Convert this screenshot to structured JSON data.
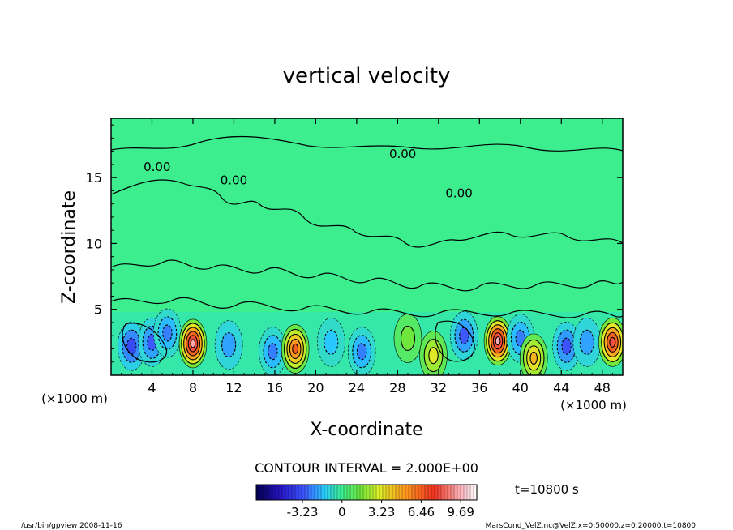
{
  "chart_data": {
    "type": "heatmap",
    "title": "vertical velocity",
    "xlabel": "X-coordinate",
    "ylabel": "Z-coordinate",
    "x_unit": "(×1000 m)",
    "xlim": [
      0,
      50
    ],
    "ylim": [
      0,
      19.5
    ],
    "x_ticks": [
      4,
      8,
      12,
      16,
      20,
      24,
      28,
      32,
      36,
      40,
      44,
      48
    ],
    "y_ticks": [
      5,
      10,
      15
    ],
    "contour_labels": [
      {
        "text": "0.00",
        "x": 4.5,
        "y": 15.5
      },
      {
        "text": "0.00",
        "x": 12.0,
        "y": 14.5
      },
      {
        "text": "0.00",
        "x": 28.5,
        "y": 16.5
      },
      {
        "text": "0.00",
        "x": 34.0,
        "y": 13.5
      }
    ],
    "cells": [
      {
        "x": 2.0,
        "z": 2.2,
        "w": -3.5
      },
      {
        "x": 4.0,
        "z": 2.5,
        "w": -3.0
      },
      {
        "x": 5.5,
        "z": 3.2,
        "w": -2.5
      },
      {
        "x": 8.0,
        "z": 2.4,
        "w": 9.5
      },
      {
        "x": 11.5,
        "z": 2.3,
        "w": -2.0
      },
      {
        "x": 15.8,
        "z": 1.8,
        "w": -2.5
      },
      {
        "x": 18.0,
        "z": 2.0,
        "w": 6.5
      },
      {
        "x": 21.5,
        "z": 2.5,
        "w": -1.5
      },
      {
        "x": 24.5,
        "z": 1.8,
        "w": -2.5
      },
      {
        "x": 29.0,
        "z": 2.8,
        "w": 1.5
      },
      {
        "x": 31.5,
        "z": 1.5,
        "w": 3.2
      },
      {
        "x": 34.5,
        "z": 3.0,
        "w": -3.0
      },
      {
        "x": 37.8,
        "z": 2.6,
        "w": 9.6
      },
      {
        "x": 40.0,
        "z": 2.8,
        "w": -2.5
      },
      {
        "x": 41.3,
        "z": 1.3,
        "w": 4.5
      },
      {
        "x": 44.5,
        "z": 2.2,
        "w": -3.2
      },
      {
        "x": 46.5,
        "z": 2.5,
        "w": -2.0
      },
      {
        "x": 49.0,
        "z": 2.5,
        "w": 8.0
      }
    ],
    "contour_interval": "CONTOUR INTERVAL = 2.000E+00",
    "colorbar_ticks": [
      "-3.23",
      "0",
      "3.23",
      "6.46",
      "9.69"
    ],
    "colorbar_range": [
      -7.0,
      11.0
    ],
    "time_label": "t=10800 s"
  },
  "footer": {
    "left": "/usr/bin/gpview   2008-11-16",
    "right": "MarsCond_VelZ.nc@VelZ,x=0:50000,z=0:20000,t=10800"
  }
}
